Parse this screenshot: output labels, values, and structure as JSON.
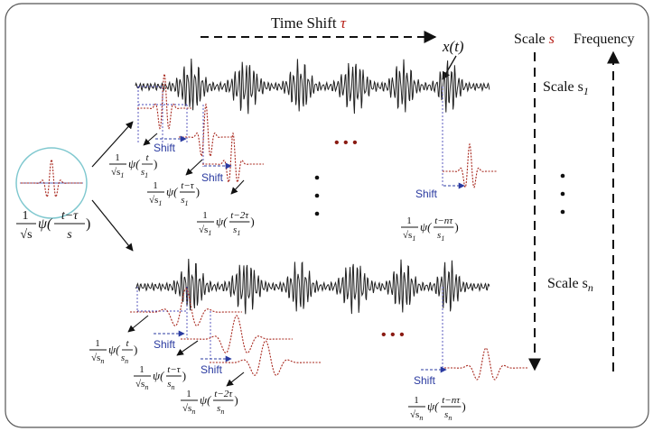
{
  "title": {
    "prefix": "Time Shift ",
    "symbol": "τ"
  },
  "signal_label": "x(t)",
  "scale_axis": {
    "prefix": "Scale ",
    "symbol": "s"
  },
  "frequency_label": "Frequency",
  "scale_top": {
    "base": "Scale s",
    "sub": "1"
  },
  "scale_bottom": {
    "base": "Scale s",
    "sub": "n"
  },
  "shift_label": "Shift",
  "ellipsis": "• • •",
  "mother_wavelet": {
    "coef_num": "1",
    "coef_den": "√s",
    "psi": "ψ(",
    "arg_num": "t−τ",
    "arg_den": "s",
    "close": ")"
  },
  "row_top": {
    "coef_num": "1",
    "coef_den": "√s",
    "coef_sub": "1",
    "formulas": [
      {
        "arg_num": "t",
        "arg_den": "s",
        "sub": "1"
      },
      {
        "arg_num": "t−τ",
        "arg_den": "s",
        "sub": "1"
      },
      {
        "arg_num": "t−2τ",
        "arg_den": "s",
        "sub": "1"
      },
      {
        "arg_num": "t−nτ",
        "arg_den": "s",
        "sub": "1"
      }
    ]
  },
  "row_bottom": {
    "coef_num": "1",
    "coef_den": "√s",
    "coef_sub": "n",
    "formulas": [
      {
        "arg_num": "t",
        "arg_den": "s",
        "sub": "n"
      },
      {
        "arg_num": "t−τ",
        "arg_den": "s",
        "sub": "n"
      },
      {
        "arg_num": "t−2τ",
        "arg_den": "s",
        "sub": "n"
      },
      {
        "arg_num": "t−nτ",
        "arg_den": "s",
        "sub": "n"
      }
    ]
  },
  "colors": {
    "signal": "#222222",
    "wavelet": "#a8281e",
    "guide": "#4a4ab8",
    "shift_arrow": "#2a3aa0",
    "accent": "#b8221a",
    "circle": "#7fc8cf",
    "frame": "#555555"
  }
}
